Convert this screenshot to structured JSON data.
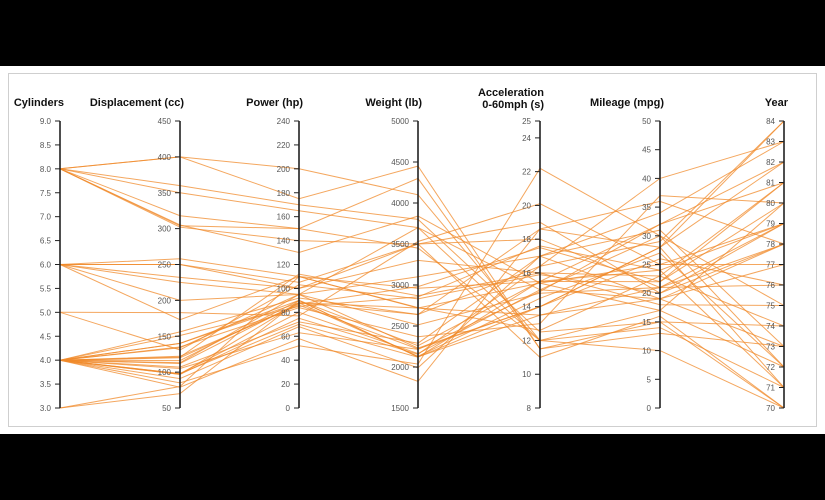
{
  "chart_data": {
    "type": "parallel-coordinates",
    "line_color": "#f08a2a",
    "axis_color": "#222222",
    "axes": [
      {
        "name": "Cylinders",
        "min": 3,
        "max": 9,
        "ticks": [
          "3.0",
          "3.5",
          "4.0",
          "4.5",
          "5.0",
          "5.5",
          "6.0",
          "6.5",
          "7.0",
          "7.5",
          "8.0",
          "8.5",
          "9.0"
        ],
        "tick_values": [
          3,
          3.5,
          4,
          4.5,
          5,
          5.5,
          6,
          6.5,
          7,
          7.5,
          8,
          8.5,
          9
        ]
      },
      {
        "name": "Displacement (cc)",
        "min": 50,
        "max": 450,
        "ticks": [
          "50",
          "100",
          "150",
          "200",
          "250",
          "300",
          "350",
          "400",
          "450"
        ],
        "tick_values": [
          50,
          100,
          150,
          200,
          250,
          300,
          350,
          400,
          450
        ]
      },
      {
        "name": "Power (hp)",
        "min": 0,
        "max": 240,
        "ticks": [
          "0",
          "20",
          "40",
          "60",
          "80",
          "100",
          "120",
          "140",
          "160",
          "180",
          "200",
          "220",
          "240"
        ],
        "tick_values": [
          0,
          20,
          40,
          60,
          80,
          100,
          120,
          140,
          160,
          180,
          200,
          220,
          240
        ]
      },
      {
        "name": "Weight (lb)",
        "min": 1500,
        "max": 5000,
        "ticks": [
          "1500",
          "2000",
          "2500",
          "3000",
          "3500",
          "4000",
          "4500",
          "5000"
        ],
        "tick_values": [
          1500,
          2000,
          2500,
          3000,
          3500,
          4000,
          4500,
          5000
        ]
      },
      {
        "name": "Acceleration 0-60mph (s)",
        "min": 8,
        "max": 25,
        "ticks": [
          "8",
          "10",
          "12",
          "14",
          "16",
          "18",
          "20",
          "22",
          "24",
          "25"
        ],
        "tick_values": [
          8,
          10,
          12,
          14,
          16,
          18,
          20,
          22,
          24,
          25
        ]
      },
      {
        "name": "Mileage (mpg)",
        "min": 0,
        "max": 50,
        "ticks": [
          "0",
          "5",
          "10",
          "15",
          "20",
          "25",
          "30",
          "35",
          "40",
          "45",
          "50"
        ],
        "tick_values": [
          0,
          5,
          10,
          15,
          20,
          25,
          30,
          35,
          40,
          45,
          50
        ]
      },
      {
        "name": "Year",
        "min": 70,
        "max": 84,
        "ticks": [
          "70",
          "71",
          "72",
          "73",
          "74",
          "75",
          "76",
          "77",
          "78",
          "79",
          "80",
          "81",
          "82",
          "83",
          "84"
        ],
        "tick_values": [
          70,
          71,
          72,
          73,
          74,
          75,
          76,
          77,
          78,
          79,
          80,
          81,
          82,
          83,
          84
        ]
      }
    ],
    "records": [
      [
        8,
        400,
        200,
        4100,
        12,
        10,
        70
      ],
      [
        8,
        350,
        165,
        3700,
        12,
        14,
        71
      ],
      [
        8,
        318,
        150,
        4300,
        11.5,
        15,
        70
      ],
      [
        8,
        304,
        150,
        3450,
        12,
        17,
        72
      ],
      [
        8,
        400,
        175,
        4450,
        11.5,
        13,
        73
      ],
      [
        8,
        302,
        140,
        3500,
        11,
        16,
        70
      ],
      [
        8,
        360,
        170,
        3800,
        12.5,
        15,
        74
      ],
      [
        6,
        250,
        100,
        3300,
        16,
        18,
        75
      ],
      [
        6,
        232,
        100,
        3500,
        18,
        21,
        76
      ],
      [
        6,
        200,
        95,
        3100,
        17,
        19,
        77
      ],
      [
        6,
        250,
        105,
        3500,
        19,
        20,
        79
      ],
      [
        6,
        225,
        95,
        3700,
        15,
        19,
        78
      ],
      [
        6,
        258,
        110,
        2960,
        15.5,
        22,
        80
      ],
      [
        5,
        131,
        103,
        2830,
        15.9,
        20,
        78
      ],
      [
        5,
        183,
        77,
        3530,
        20.1,
        25,
        79
      ],
      [
        4,
        140,
        90,
        2260,
        15.5,
        24,
        71
      ],
      [
        4,
        97,
        88,
        2130,
        14.5,
        27,
        72
      ],
      [
        4,
        120,
        87,
        2980,
        17.5,
        22,
        81
      ],
      [
        4,
        98,
        70,
        2120,
        15.5,
        32,
        82
      ],
      [
        4,
        91,
        68,
        1990,
        17,
        34,
        83
      ],
      [
        4,
        156,
        92,
        2640,
        16.4,
        29,
        84
      ],
      [
        4,
        107,
        72,
        2290,
        17,
        31,
        73
      ],
      [
        4,
        121,
        112,
        2870,
        16,
        23,
        74
      ],
      [
        4,
        85,
        52,
        2035,
        22.2,
        30,
        75
      ],
      [
        4,
        113,
        95,
        2230,
        14,
        26,
        76
      ],
      [
        4,
        140,
        88,
        2720,
        15.4,
        25,
        77
      ],
      [
        4,
        79,
        58,
        1825,
        18.6,
        36,
        78
      ],
      [
        4,
        151,
        85,
        2855,
        17.6,
        24,
        79
      ],
      [
        4,
        135,
        84,
        2370,
        13,
        37,
        80
      ],
      [
        4,
        105,
        63,
        2215,
        14.9,
        32,
        81
      ],
      [
        4,
        112,
        88,
        2640,
        18.6,
        28,
        82
      ],
      [
        4,
        97,
        75,
        2155,
        16.4,
        40,
        83
      ],
      [
        4,
        122,
        86,
        2220,
        14,
        28,
        84
      ],
      [
        4,
        98,
        80,
        2164,
        15,
        30,
        72
      ],
      [
        3,
        70,
        90,
        2124,
        13.5,
        19,
        73
      ],
      [
        3,
        80,
        110,
        2720,
        13.5,
        21,
        79
      ],
      [
        4,
        116,
        90,
        2123,
        14,
        28,
        71
      ],
      [
        4,
        134,
        95,
        2515,
        14.8,
        21,
        78
      ],
      [
        6,
        173,
        110,
        2725,
        12.6,
        23,
        81
      ],
      [
        8,
        305,
        130,
        3840,
        15.4,
        17,
        80
      ]
    ]
  }
}
